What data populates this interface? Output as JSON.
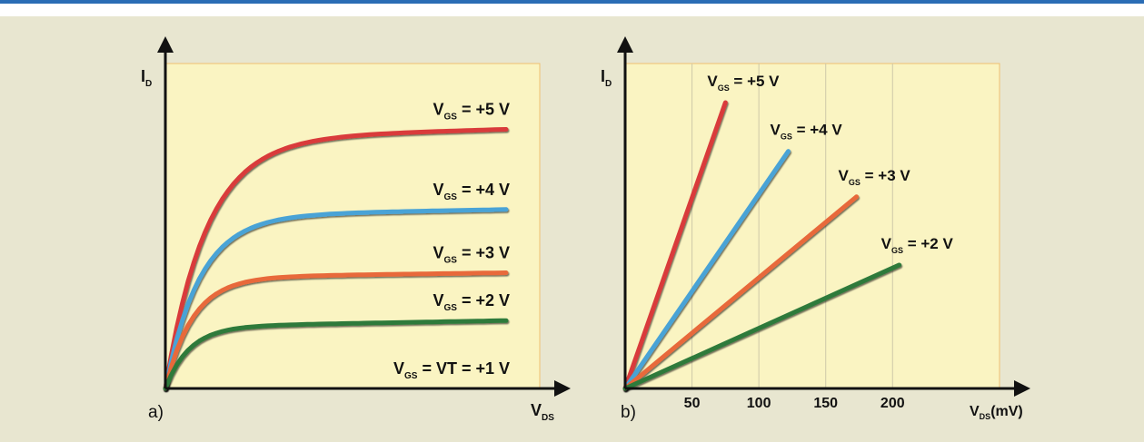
{
  "figure": {
    "panel_a_tag": "a)",
    "panel_b_tag": "b)"
  },
  "colors": {
    "plot_bg": "#faf4c2",
    "border": "#f0c070",
    "red": "#d93a3a",
    "blue": "#4aa3d6",
    "orange": "#e8693a",
    "green": "#2f7a3a",
    "gray": "#7b7b7b",
    "grid": "#cfc9a8"
  },
  "chart_data": [
    {
      "type": "line",
      "title": "",
      "xlabel": {
        "main": "V",
        "sub": "DS"
      },
      "ylabel": {
        "main": "I",
        "sub": "D"
      },
      "x_ticks": [],
      "xlim": [
        0,
        10
      ],
      "ylim": [
        0,
        10
      ],
      "series": [
        {
          "name": {
            "main": "V",
            "sub": "GS",
            "rest": " = +5 V"
          },
          "color": "#d93a3a",
          "saturation_current": 8.1,
          "knee": 1.2,
          "slope": 0.03
        },
        {
          "name": {
            "main": "V",
            "sub": "GS",
            "rest": " = +4 V"
          },
          "color": "#4aa3d6",
          "saturation_current": 5.6,
          "knee": 1.0,
          "slope": 0.02
        },
        {
          "name": {
            "main": "V",
            "sub": "GS",
            "rest": " = +3 V"
          },
          "color": "#e8693a",
          "saturation_current": 3.6,
          "knee": 0.8,
          "slope": 0.015
        },
        {
          "name": {
            "main": "V",
            "sub": "GS",
            "rest": " = +2 V"
          },
          "color": "#2f7a3a",
          "saturation_current": 2.0,
          "knee": 0.7,
          "slope": 0.02
        },
        {
          "name": {
            "main": "V",
            "sub": "GS",
            "rest": " = VT = +1 V"
          },
          "color": "#7b7b7b",
          "saturation_current": 0.0,
          "knee": 0.5,
          "slope": 0.0
        }
      ]
    },
    {
      "type": "line",
      "title": "",
      "xlabel": {
        "main": "V",
        "sub": "DS",
        "rest": "(mV)"
      },
      "ylabel": {
        "main": "I",
        "sub": "D"
      },
      "x_ticks": [
        {
          "value": 50,
          "label": "50"
        },
        {
          "value": 100,
          "label": "100"
        },
        {
          "value": 150,
          "label": "150"
        },
        {
          "value": 200,
          "label": "200"
        }
      ],
      "xlim": [
        0,
        280
      ],
      "ylim": [
        0,
        10
      ],
      "grid": true,
      "series": [
        {
          "name": {
            "main": "V",
            "sub": "GS",
            "rest": " = +5 V"
          },
          "color": "#d93a3a",
          "x_end": 75,
          "y_end": 8.8
        },
        {
          "name": {
            "main": "V",
            "sub": "GS",
            "rest": " = +4 V"
          },
          "color": "#4aa3d6",
          "x_end": 122,
          "y_end": 7.3
        },
        {
          "name": {
            "main": "V",
            "sub": "GS",
            "rest": " = +3 V"
          },
          "color": "#e8693a",
          "x_end": 173,
          "y_end": 5.9
        },
        {
          "name": {
            "main": "V",
            "sub": "GS",
            "rest": " = +2 V"
          },
          "color": "#2f7a3a",
          "x_end": 205,
          "y_end": 3.8
        }
      ]
    }
  ]
}
